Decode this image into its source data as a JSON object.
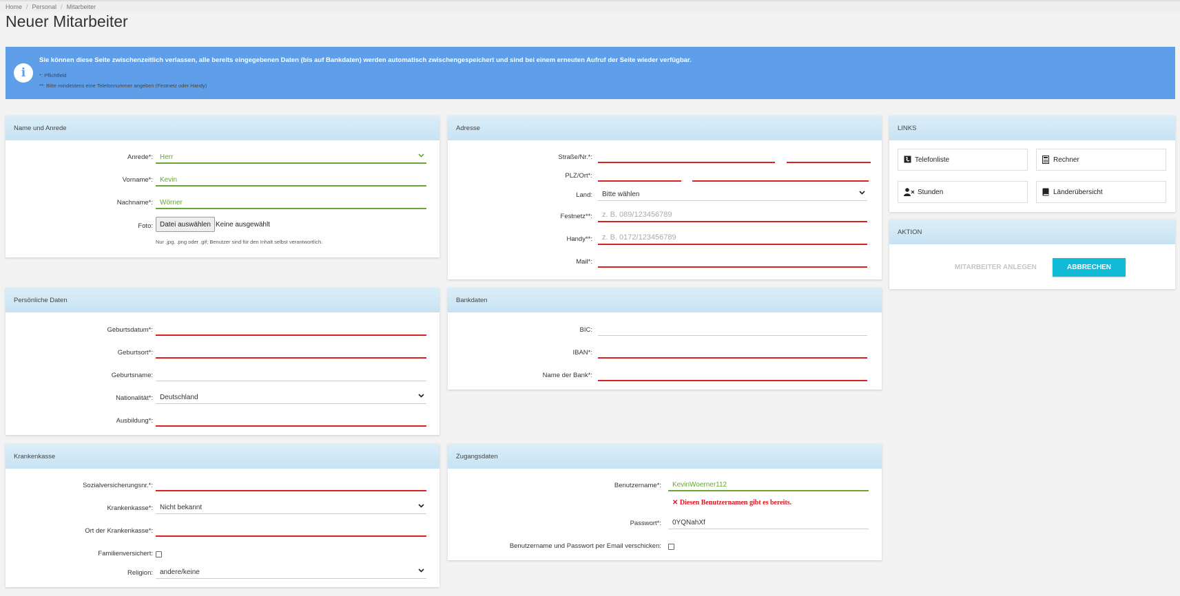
{
  "breadcrumb": [
    "Home",
    "Personal",
    "Mitarbeiter"
  ],
  "page_title": "Neuer Mitarbeiter",
  "info": {
    "main": "Sie können diese Seite zwischenzeitlich verlassen, alle bereits eingegebenen Daten (bis auf Bankdaten) werden automatisch zwischengespeichert und sind bei einem erneuten Aufruf der Seite wieder verfügbar.",
    "note1": "*: Pflichtfeld",
    "note2": "**: Bitte mindestens eine Telefonnummer angeben (Festnetz oder Handy)"
  },
  "name": {
    "title": "Name und Anrede",
    "anrede_label": "Anrede*:",
    "anrede_value": "Herr",
    "vorname_label": "Vorname*:",
    "vorname_value": "Kevin",
    "nachname_label": "Nachname*:",
    "nachname_value": "Wörner",
    "foto_label": "Foto:",
    "foto_button": "Datei auswählen",
    "foto_status": "Keine ausgewählt",
    "foto_hint": "Nur .jpg, .png oder .gif; Benutzer sind für den Inhalt selbst verantwortlich."
  },
  "adresse": {
    "title": "Adresse",
    "strasse_label": "Straße/Nr.*:",
    "plz_label": "PLZ/Ort*:",
    "land_label": "Land:",
    "land_value": "Bitte wählen",
    "festnetz_label": "Festnetz**:",
    "festnetz_placeholder": "z. B. 089/123456789",
    "handy_label": "Handy**:",
    "handy_placeholder": "z. B. 0172/123456789",
    "mail_label": "Mail*:"
  },
  "links": {
    "title": "LINKS",
    "items": [
      "Telefonliste",
      "Rechner",
      "Stunden",
      "Länderübersicht"
    ]
  },
  "aktion": {
    "title": "AKTION",
    "create_label": "MITARBEITER ANLEGEN",
    "cancel_label": "ABBRECHEN"
  },
  "persoenlich": {
    "title": "Persönliche Daten",
    "geburtsdatum_label": "Geburtsdatum*:",
    "geburtsort_label": "Geburtsort*:",
    "geburtsname_label": "Geburtsname:",
    "nationalitaet_label": "Nationalität*:",
    "nationalitaet_value": "Deutschland",
    "ausbildung_label": "Ausbildung*:"
  },
  "bank": {
    "title": "Bankdaten",
    "bic_label": "BIC:",
    "iban_label": "IBAN*:",
    "bankname_label": "Name der Bank*:"
  },
  "kasse": {
    "title": "Krankenkasse",
    "svnr_label": "Sozialversicherungsnr.*:",
    "kasse_label": "Krankenkasse*:",
    "kasse_value": "Nicht bekannt",
    "ort_label": "Ort der Krankenkasse*:",
    "familie_label": "Familienversichert:",
    "religion_label": "Religion:",
    "religion_value": "andere/keine"
  },
  "zugang": {
    "title": "Zugangsdaten",
    "user_label": "Benutzername*:",
    "user_value": "KevinWoerner112",
    "user_error": "Diesen Benutzernamen gibt es bereits.",
    "pw_label": "Passwort*:",
    "pw_value": "0YQNahXf",
    "mail_label": "Benutzername und Passwort per Email verschicken:"
  },
  "colors": {
    "accent": "#5f9fea",
    "error": "#dd1c1c",
    "valid": "#67a534",
    "button": "#11bad6"
  }
}
